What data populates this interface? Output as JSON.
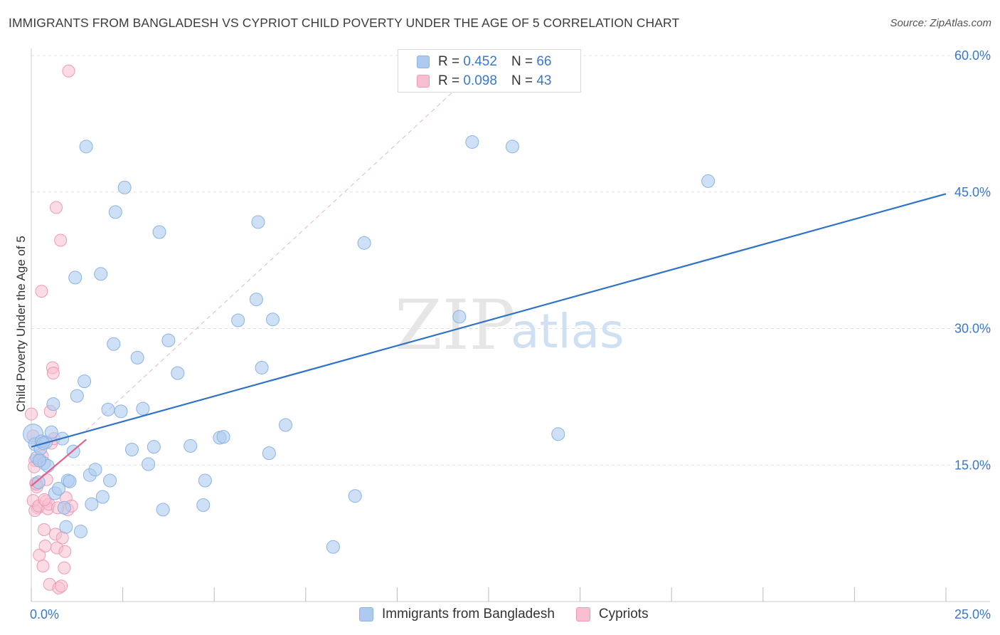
{
  "title": "IMMIGRANTS FROM BANGLADESH VS CYPRIOT CHILD POVERTY UNDER THE AGE OF 5 CORRELATION CHART",
  "source": "Source: ZipAtlas.com",
  "watermark": {
    "zip": "ZIP",
    "atlas": "atlas"
  },
  "legend": {
    "r_label": "R =",
    "n_label": "N =",
    "series": [
      {
        "r": "0.452",
        "n": "66"
      },
      {
        "r": "0.098",
        "n": "43"
      }
    ]
  },
  "bottom_legend": [
    "Immigrants from Bangladesh",
    "Cypriots"
  ],
  "colors": {
    "blue_fill": "#aecbef",
    "blue_stroke": "#8bb3e3",
    "blue_line": "#2f72c9",
    "pink_fill": "#f7bfd0",
    "pink_stroke": "#ee9ab5",
    "pink_line": "#e2628c",
    "axis_text": "#3a78c9",
    "grid": "#e0e0e0"
  },
  "chart_data": {
    "type": "scatter",
    "title": "IMMIGRANTS FROM BANGLADESH VS CYPRIOT CHILD POVERTY UNDER THE AGE OF 5 CORRELATION CHART",
    "xlabel": "",
    "ylabel": "Child Poverty Under the Age of 5",
    "xlim": [
      0,
      25
    ],
    "ylim": [
      0,
      60
    ],
    "x_tick_labels": [
      "0.0%",
      "25.0%"
    ],
    "y_ticks": [
      15,
      30,
      45,
      60
    ],
    "y_tick_labels": [
      "15.0%",
      "30.0%",
      "45.0%",
      "60.0%"
    ],
    "series": [
      {
        "name": "Immigrants from Bangladesh",
        "R": 0.452,
        "N": 66,
        "trend": {
          "x": [
            0,
            25
          ],
          "y": [
            17.0,
            44.8
          ]
        },
        "points": [
          [
            0.05,
            18.4
          ],
          [
            0.1,
            17.3
          ],
          [
            0.15,
            15.8
          ],
          [
            0.2,
            13.1
          ],
          [
            0.25,
            16.8
          ],
          [
            0.28,
            17.6
          ],
          [
            0.35,
            15.2
          ],
          [
            0.4,
            17.5
          ],
          [
            0.45,
            14.9
          ],
          [
            0.6,
            21.7
          ],
          [
            0.55,
            18.6
          ],
          [
            0.65,
            11.9
          ],
          [
            0.75,
            12.4
          ],
          [
            0.85,
            17.9
          ],
          [
            0.9,
            10.3
          ],
          [
            0.95,
            8.2
          ],
          [
            1.0,
            13.3
          ],
          [
            1.05,
            13.2
          ],
          [
            1.15,
            16.5
          ],
          [
            1.2,
            35.6
          ],
          [
            1.25,
            22.6
          ],
          [
            1.35,
            7.7
          ],
          [
            1.45,
            24.2
          ],
          [
            1.5,
            50.0
          ],
          [
            1.6,
            13.9
          ],
          [
            1.65,
            10.7
          ],
          [
            1.75,
            14.5
          ],
          [
            1.9,
            36.0
          ],
          [
            1.95,
            11.5
          ],
          [
            2.1,
            21.1
          ],
          [
            2.15,
            13.3
          ],
          [
            2.25,
            28.3
          ],
          [
            2.3,
            42.8
          ],
          [
            2.45,
            20.9
          ],
          [
            2.55,
            45.5
          ],
          [
            2.75,
            16.7
          ],
          [
            2.9,
            26.8
          ],
          [
            3.05,
            21.2
          ],
          [
            3.2,
            15.1
          ],
          [
            3.35,
            17.0
          ],
          [
            3.5,
            40.6
          ],
          [
            3.6,
            10.1
          ],
          [
            3.75,
            28.7
          ],
          [
            4.0,
            25.1
          ],
          [
            4.35,
            17.1
          ],
          [
            4.7,
            10.6
          ],
          [
            4.75,
            13.3
          ],
          [
            5.15,
            18.0
          ],
          [
            5.25,
            18.1
          ],
          [
            5.65,
            30.9
          ],
          [
            6.15,
            33.2
          ],
          [
            6.2,
            41.7
          ],
          [
            6.3,
            25.7
          ],
          [
            6.5,
            16.3
          ],
          [
            6.6,
            31.0
          ],
          [
            6.95,
            19.4
          ],
          [
            8.25,
            6.0
          ],
          [
            8.85,
            11.6
          ],
          [
            9.1,
            39.4
          ],
          [
            11.7,
            31.3
          ],
          [
            12.05,
            50.5
          ],
          [
            13.15,
            50.0
          ],
          [
            14.4,
            18.4
          ],
          [
            18.5,
            46.2
          ],
          [
            0.32,
            17.4
          ],
          [
            0.22,
            15.5
          ]
        ]
      },
      {
        "name": "Cypriots",
        "R": 0.098,
        "N": 43,
        "trend": {
          "x": [
            0,
            1.5
          ],
          "y": [
            12.7,
            17.8
          ]
        },
        "points": [
          [
            0.0,
            20.6
          ],
          [
            0.05,
            18.2
          ],
          [
            0.1,
            15.5
          ],
          [
            0.08,
            14.8
          ],
          [
            0.12,
            13.0
          ],
          [
            0.15,
            12.6
          ],
          [
            0.18,
            10.3
          ],
          [
            0.1,
            10.0
          ],
          [
            0.05,
            11.1
          ],
          [
            0.2,
            10.5
          ],
          [
            0.25,
            15.6
          ],
          [
            0.3,
            16.0
          ],
          [
            0.22,
            5.1
          ],
          [
            0.28,
            34.1
          ],
          [
            0.32,
            3.9
          ],
          [
            0.35,
            7.9
          ],
          [
            0.38,
            6.1
          ],
          [
            0.4,
            11.0
          ],
          [
            0.45,
            10.2
          ],
          [
            0.42,
            13.4
          ],
          [
            0.48,
            10.7
          ],
          [
            0.5,
            1.9
          ],
          [
            0.55,
            17.4
          ],
          [
            0.52,
            20.9
          ],
          [
            0.58,
            25.7
          ],
          [
            0.6,
            25.1
          ],
          [
            0.62,
            17.9
          ],
          [
            0.66,
            7.4
          ],
          [
            0.7,
            5.9
          ],
          [
            0.68,
            43.3
          ],
          [
            0.75,
            1.5
          ],
          [
            0.8,
            39.7
          ],
          [
            0.82,
            1.7
          ],
          [
            0.85,
            7.0
          ],
          [
            0.9,
            3.7
          ],
          [
            0.92,
            5.5
          ],
          [
            0.95,
            11.4
          ],
          [
            1.0,
            10.1
          ],
          [
            1.02,
            58.3
          ],
          [
            1.1,
            10.5
          ],
          [
            0.14,
            12.9
          ],
          [
            0.36,
            11.2
          ],
          [
            0.72,
            10.3
          ]
        ]
      }
    ],
    "reference_line": {
      "style": "dashed",
      "x": [
        1.5,
        12.6
      ],
      "y": [
        18.8,
        60.0
      ]
    }
  }
}
